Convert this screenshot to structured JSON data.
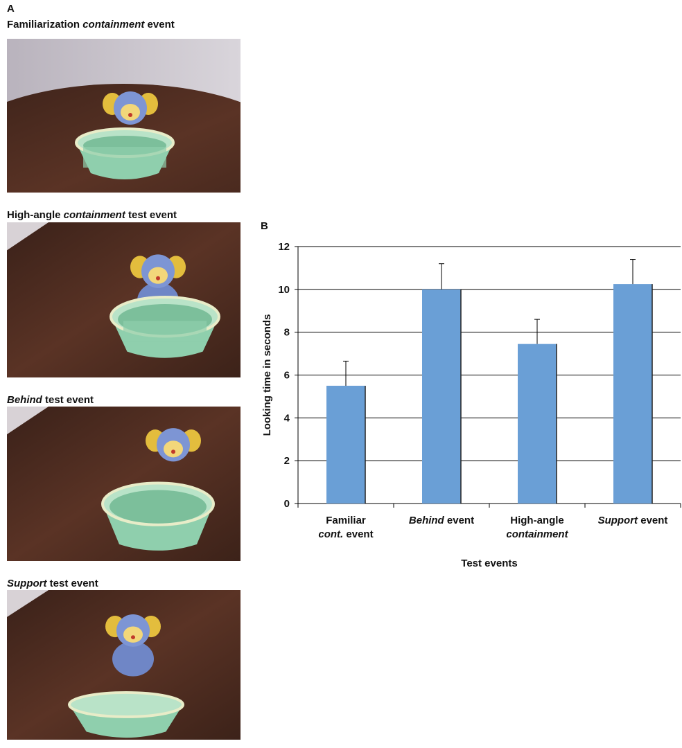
{
  "panel_a": {
    "label": "A",
    "captions": [
      {
        "text": "Familiarization containment event",
        "italic": "containment"
      },
      {
        "text": "High-angle containment test event",
        "italic": "containment"
      },
      {
        "text": "Behind test event",
        "italic": "Behind"
      },
      {
        "text": "Support test event",
        "italic": "Support"
      }
    ]
  },
  "panel_b": {
    "label": "B"
  },
  "chart_data": {
    "type": "bar",
    "categories": [
      "Familiar cont. event",
      "Behind event",
      "High-angle containment",
      "Support event"
    ],
    "category_italic": [
      "cont.",
      "Behind",
      "containment",
      "Support"
    ],
    "values": [
      5.5,
      10.0,
      7.45,
      10.25
    ],
    "errors": [
      1.15,
      1.2,
      1.15,
      1.15
    ],
    "color": "#6a9fd6",
    "ylabel": "Looking time in seconds",
    "xlabel": "Test events",
    "ylim": [
      0,
      12
    ],
    "yticks": [
      0,
      2,
      4,
      6,
      8,
      10,
      12
    ],
    "grid": true
  }
}
